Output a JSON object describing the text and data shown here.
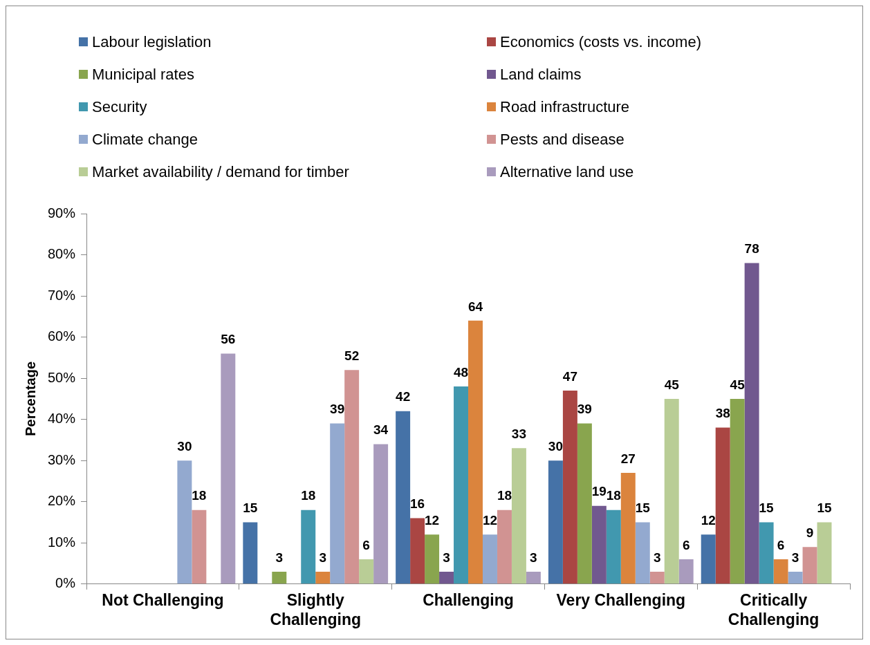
{
  "chart_data": {
    "type": "bar",
    "ylabel": "Percentage",
    "categories": [
      "Not Challenging",
      "Slightly Challenging",
      "Challenging",
      "Very Challenging",
      "Critically Challenging"
    ],
    "series": [
      {
        "name": "Labour legislation",
        "color": "#4572a7",
        "values": [
          null,
          15,
          42,
          30,
          12
        ]
      },
      {
        "name": "Economics (costs vs. income)",
        "color": "#aa4643",
        "values": [
          null,
          null,
          16,
          47,
          38
        ]
      },
      {
        "name": "Municipal rates",
        "color": "#89a54e",
        "values": [
          null,
          3,
          12,
          39,
          45
        ]
      },
      {
        "name": "Land claims",
        "color": "#71588f",
        "values": [
          null,
          null,
          3,
          19,
          78
        ]
      },
      {
        "name": "Security",
        "color": "#4198af",
        "values": [
          null,
          18,
          48,
          18,
          15
        ]
      },
      {
        "name": "Road infrastructure",
        "color": "#db843d",
        "values": [
          null,
          3,
          64,
          27,
          6
        ]
      },
      {
        "name": "Climate change",
        "color": "#93a9cf",
        "values": [
          30,
          39,
          12,
          15,
          3
        ]
      },
      {
        "name": "Pests and disease",
        "color": "#d19392",
        "values": [
          18,
          52,
          18,
          3,
          9
        ]
      },
      {
        "name": "Market availability / demand for timber",
        "color": "#b9cd96",
        "values": [
          null,
          6,
          33,
          45,
          15
        ]
      },
      {
        "name": "Alternative land use",
        "color": "#a99bbd",
        "values": [
          56,
          34,
          3,
          6,
          null
        ]
      }
    ],
    "ylim": [
      0,
      90
    ],
    "yticks": [
      {
        "value": 0,
        "label": "0%"
      },
      {
        "value": 10,
        "label": "10%"
      },
      {
        "value": 20,
        "label": "20%"
      },
      {
        "value": 30,
        "label": "30%"
      },
      {
        "value": 40,
        "label": "40%"
      },
      {
        "value": 50,
        "label": "50%"
      },
      {
        "value": 60,
        "label": "60%"
      },
      {
        "value": 70,
        "label": "70%"
      },
      {
        "value": 80,
        "label": "80%"
      },
      {
        "value": 90,
        "label": "90%"
      }
    ],
    "grid": false,
    "legend": "top",
    "data_labels": true
  }
}
